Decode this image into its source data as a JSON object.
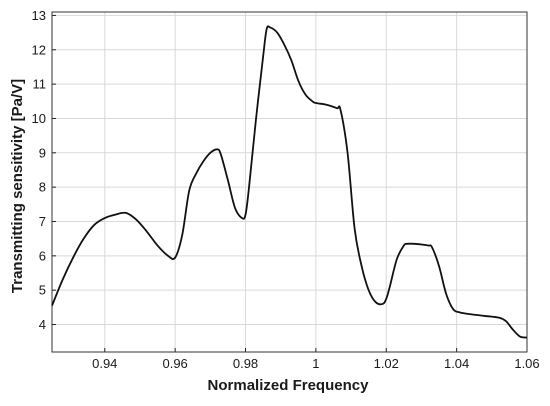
{
  "chart_data": {
    "type": "line",
    "title": "",
    "xlabel": "Normalized Frequency",
    "ylabel": "Transmitting sensitivity [Pa/V]",
    "xlim": [
      0.925,
      1.06
    ],
    "ylim": [
      3.2,
      13.1
    ],
    "xticks": [
      0.94,
      0.96,
      0.98,
      1.0,
      1.02,
      1.04,
      1.06
    ],
    "xtick_labels": [
      "0.94",
      "0.96",
      "0.98",
      "1",
      "1.02",
      "1.04",
      "1.06"
    ],
    "yticks": [
      4,
      5,
      6,
      7,
      8,
      9,
      10,
      11,
      12,
      13
    ],
    "ytick_labels": [
      "4",
      "5",
      "6",
      "7",
      "8",
      "9",
      "10",
      "11",
      "12",
      "13"
    ],
    "grid": true,
    "legend": "none",
    "line_color": "#111111",
    "grid_color": "#d9d9d9",
    "series": [
      {
        "x": [
          0.925,
          0.928,
          0.931,
          0.934,
          0.937,
          0.94,
          0.943,
          0.946,
          0.949,
          0.952,
          0.955,
          0.958,
          0.96,
          0.962,
          0.964,
          0.966,
          0.968,
          0.97,
          0.972,
          0.973,
          0.975,
          0.977,
          0.979,
          0.98,
          0.981,
          0.983,
          0.985,
          0.986,
          0.987,
          0.989,
          0.991,
          0.993,
          0.995,
          0.997,
          0.999,
          1.0,
          1.003,
          1.006,
          1.007,
          1.009,
          1.011,
          1.013,
          1.015,
          1.017,
          1.019,
          1.02,
          1.021,
          1.023,
          1.025,
          1.026,
          1.028,
          1.03,
          1.032,
          1.033,
          1.035,
          1.037,
          1.039,
          1.041,
          1.044,
          1.048,
          1.052,
          1.054,
          1.056,
          1.058,
          1.06
        ],
        "y": [
          4.55,
          5.3,
          5.95,
          6.5,
          6.9,
          7.1,
          7.2,
          7.25,
          7.05,
          6.7,
          6.3,
          6.0,
          5.95,
          6.6,
          7.9,
          8.4,
          8.75,
          9.0,
          9.1,
          8.95,
          8.2,
          7.4,
          7.1,
          7.2,
          8.0,
          10.0,
          11.8,
          12.6,
          12.65,
          12.5,
          12.15,
          11.7,
          11.1,
          10.7,
          10.5,
          10.45,
          10.4,
          10.3,
          10.25,
          9.0,
          6.8,
          5.7,
          5.0,
          4.65,
          4.6,
          4.75,
          5.1,
          5.9,
          6.3,
          6.35,
          6.35,
          6.33,
          6.3,
          6.25,
          5.7,
          4.9,
          4.45,
          4.35,
          4.3,
          4.25,
          4.2,
          4.1,
          3.85,
          3.65,
          3.62
        ]
      }
    ]
  }
}
